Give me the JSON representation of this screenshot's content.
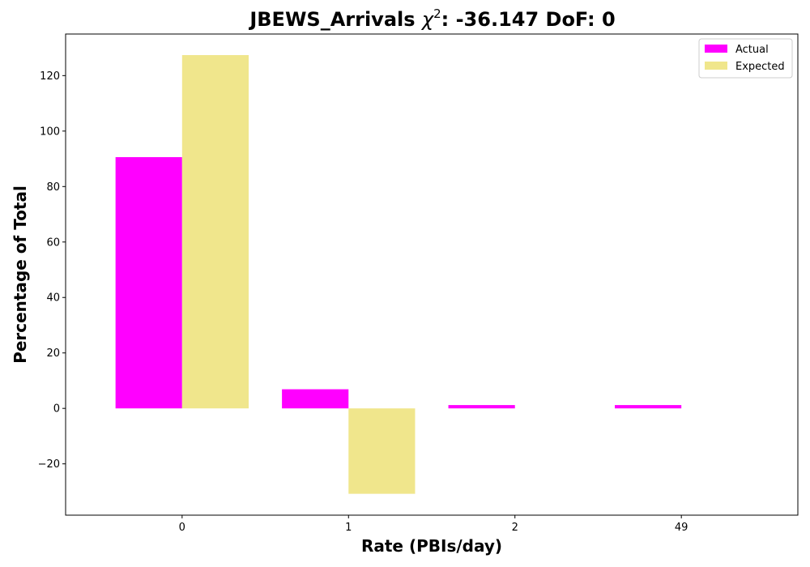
{
  "chart_data": {
    "type": "bar",
    "title_prefix": "JBEWS_Arrivals ",
    "title_chi": "χ",
    "title_sup": "2",
    "title_suffix": ": -36.147 DoF: 0",
    "xlabel": "Rate (PBIs/day)",
    "ylabel": "Percentage of Total",
    "categories": [
      "0",
      "1",
      "2",
      "49"
    ],
    "series": [
      {
        "name": "Actual",
        "color": "#ff00ff",
        "values": [
          90.6,
          6.9,
          1.2,
          1.2
        ]
      },
      {
        "name": "Expected",
        "color": "#f0e68c",
        "values": [
          127.4,
          -30.8,
          0,
          0
        ]
      }
    ],
    "ylim": [
      -38.5,
      135
    ],
    "yticks": [
      -20,
      0,
      20,
      40,
      60,
      80,
      100,
      120
    ],
    "grid": false,
    "legend_position": "top-right"
  }
}
